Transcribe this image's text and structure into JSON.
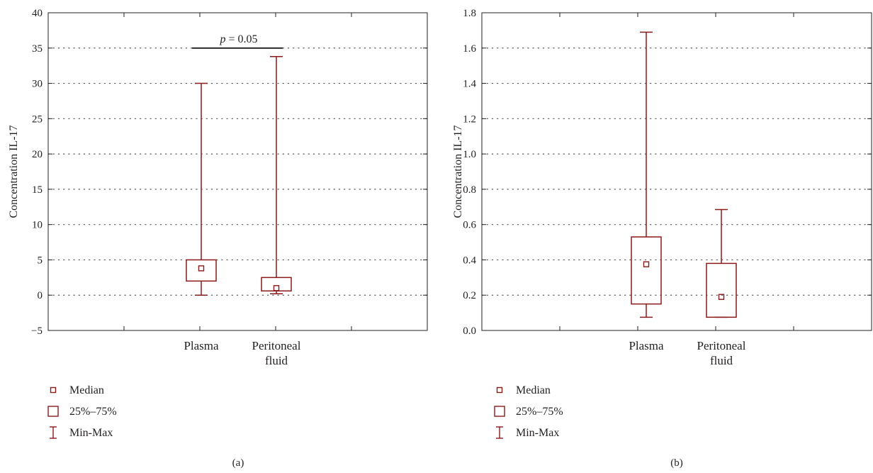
{
  "colors": {
    "box": "#8b1a1a",
    "axis": "#231f20",
    "grid": "#555555"
  },
  "chart_data": [
    {
      "type": "box",
      "panel_label": "(a)",
      "ylabel": "Concentration IL-17",
      "ylim": [
        -5,
        40
      ],
      "yticks": [
        -5,
        0,
        5,
        10,
        15,
        20,
        25,
        30,
        35,
        40
      ],
      "ytick_labels": [
        "−5",
        "0",
        "5",
        "10",
        "15",
        "20",
        "25",
        "30",
        "35",
        "40"
      ],
      "grid": true,
      "categories": [
        {
          "lines": [
            "Plasma"
          ],
          "min": 0,
          "q1": 2,
          "median": 3.8,
          "q3": 5,
          "max": 30
        },
        {
          "lines": [
            "Peritoneal",
            "fluid"
          ],
          "min": 0.2,
          "q1": 0.6,
          "median": 1.0,
          "q3": 2.5,
          "max": 33.8
        }
      ],
      "significance": {
        "p_italic": "p",
        "rest": " = 0.05",
        "y": 35
      },
      "legend": {
        "median": "Median",
        "box": "25%–75%",
        "range": "Min-Max"
      }
    },
    {
      "type": "box",
      "panel_label": "(b)",
      "ylabel": "Concentration IL-17",
      "ylim": [
        0,
        1.8
      ],
      "yticks": [
        0,
        0.2,
        0.4,
        0.6,
        0.8,
        1.0,
        1.2,
        1.4,
        1.6,
        1.8
      ],
      "ytick_labels": [
        "0.0",
        "0.2",
        "0.4",
        "0.6",
        "0.8",
        "1.0",
        "1.2",
        "1.4",
        "1.6",
        "1.8"
      ],
      "grid": true,
      "categories": [
        {
          "lines": [
            "Plasma"
          ],
          "min": 0.075,
          "q1": 0.15,
          "median": 0.375,
          "q3": 0.53,
          "max": 1.69
        },
        {
          "lines": [
            "Peritoneal",
            "fluid"
          ],
          "min": 0.075,
          "q1": 0.075,
          "median": 0.19,
          "q3": 0.38,
          "max": 0.685
        }
      ],
      "legend": {
        "median": "Median",
        "box": "25%–75%",
        "range": "Min-Max"
      }
    }
  ]
}
